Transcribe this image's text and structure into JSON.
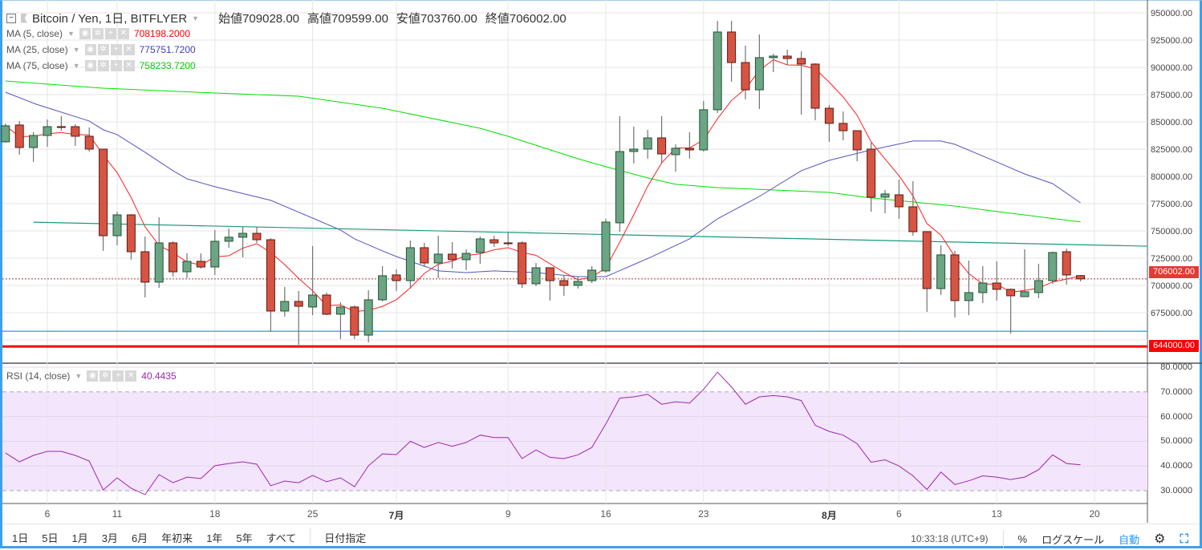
{
  "header": {
    "symbol": "Bitcoin / Yen, 1日, BITFLYER",
    "open_label": "始値",
    "open": "709028.00",
    "high_label": "高値",
    "high": "709599.00",
    "low_label": "安値",
    "low": "703760.00",
    "close_label": "終値",
    "close": "706002.00"
  },
  "indicators": [
    {
      "name": "MA (5, close)",
      "value": "708198.2000",
      "color": "#ff0000"
    },
    {
      "name": "MA (25, close)",
      "value": "775751.7200",
      "color": "#3f3fbf"
    },
    {
      "name": "MA (75, close)",
      "value": "758233.7200",
      "color": "#00e000"
    }
  ],
  "rsi": {
    "name": "RSI (14, close)",
    "value": "40.4435",
    "color": "#9c27b0"
  },
  "price_axis": [
    "950000.00",
    "925000.00",
    "900000.00",
    "875000.00",
    "850000.00",
    "825000.00",
    "800000.00",
    "775000.00",
    "750000.00",
    "725000.00",
    "700000.00",
    "675000.00"
  ],
  "price_badges": {
    "last": "706002.00",
    "level": "644000.00"
  },
  "rsi_axis": [
    "80.0000",
    "70.0000",
    "60.0000",
    "50.0000",
    "40.0000",
    "30.0000"
  ],
  "time_axis": [
    {
      "label": "6",
      "idx": 3
    },
    {
      "label": "11",
      "idx": 8
    },
    {
      "label": "18",
      "idx": 15
    },
    {
      "label": "25",
      "idx": 22
    },
    {
      "label": "7月",
      "idx": 28,
      "bold": true
    },
    {
      "label": "9",
      "idx": 36
    },
    {
      "label": "16",
      "idx": 43
    },
    {
      "label": "23",
      "idx": 50
    },
    {
      "label": "8月",
      "idx": 59,
      "bold": true
    },
    {
      "label": "6",
      "idx": 64
    },
    {
      "label": "13",
      "idx": 71
    },
    {
      "label": "20",
      "idx": 78
    }
  ],
  "colors": {
    "up": "#6ba583",
    "up_border": "#225437",
    "down": "#d75442",
    "down_border": "#5b1a13",
    "wick": "#737375",
    "trend": "#1a9a7a",
    "support": "#2a9bd8",
    "level": "#ff0000",
    "rsi_band": "#f3e5fc"
  },
  "toolbar": {
    "ranges": [
      "1日",
      "5日",
      "1月",
      "3月",
      "6月",
      "年初来",
      "1年",
      "5年",
      "すべて"
    ],
    "date_range": "日付指定",
    "clock": "10:33:18 (UTC+9)",
    "percent": "%",
    "log": "ログスケール",
    "auto": "自動"
  },
  "chart_data": {
    "type": "candlestick",
    "title": "Bitcoin / Yen, 1日, BITFLYER",
    "ylim": [
      640000,
      955000
    ],
    "ohlc": [
      [
        831700,
        848600,
        830900,
        846400
      ],
      [
        847100,
        850800,
        819900,
        826500
      ],
      [
        826500,
        840500,
        813300,
        837500
      ],
      [
        837500,
        852200,
        827200,
        845600
      ],
      [
        845600,
        855200,
        841900,
        845000
      ],
      [
        845600,
        847800,
        828000,
        836800
      ],
      [
        836800,
        844900,
        822800,
        825000
      ],
      [
        825000,
        825000,
        731700,
        745600
      ],
      [
        745600,
        767700,
        736800,
        764700
      ],
      [
        764700,
        765500,
        723600,
        730900
      ],
      [
        730900,
        744900,
        689000,
        703000
      ],
      [
        703000,
        762500,
        697800,
        739000
      ],
      [
        739000,
        740500,
        708100,
        712500
      ],
      [
        712500,
        729400,
        706700,
        722100
      ],
      [
        722100,
        729400,
        715500,
        716900
      ],
      [
        716900,
        750800,
        709600,
        740500
      ],
      [
        740500,
        752200,
        734600,
        744200
      ],
      [
        744200,
        753700,
        725800,
        747800
      ],
      [
        747800,
        753700,
        739000,
        741900
      ],
      [
        741900,
        743400,
        657400,
        676500
      ],
      [
        676500,
        698600,
        671400,
        685300
      ],
      [
        685300,
        694900,
        645600,
        680900
      ],
      [
        680200,
        736100,
        672800,
        691200
      ],
      [
        691200,
        693400,
        672800,
        673600
      ],
      [
        673600,
        684600,
        650800,
        680200
      ],
      [
        680200,
        681700,
        650800,
        654400
      ],
      [
        654400,
        695600,
        647800,
        686800
      ],
      [
        686800,
        717700,
        685300,
        708900
      ],
      [
        709600,
        714700,
        694900,
        704400
      ],
      [
        704400,
        741200,
        697100,
        734600
      ],
      [
        734600,
        739000,
        716900,
        720600
      ],
      [
        720600,
        745600,
        706700,
        728700
      ],
      [
        728700,
        739700,
        715500,
        723600
      ],
      [
        723600,
        733100,
        714000,
        729400
      ],
      [
        730200,
        744900,
        719900,
        742700
      ],
      [
        741900,
        745600,
        735300,
        739000
      ],
      [
        739000,
        749300,
        736100,
        738600
      ],
      [
        739000,
        740500,
        697800,
        701500
      ],
      [
        701500,
        720600,
        699300,
        716200
      ],
      [
        716200,
        716200,
        686100,
        704400
      ],
      [
        704400,
        709600,
        690500,
        700000
      ],
      [
        700000,
        708100,
        697100,
        703700
      ],
      [
        704400,
        717700,
        702200,
        714000
      ],
      [
        713300,
        761100,
        711800,
        758100
      ],
      [
        757400,
        855200,
        749300,
        822800
      ],
      [
        822800,
        845600,
        811800,
        825000
      ],
      [
        825000,
        842700,
        816200,
        835300
      ],
      [
        835300,
        855200,
        812500,
        820600
      ],
      [
        819900,
        829400,
        804400,
        825800
      ],
      [
        825800,
        840500,
        816200,
        824300
      ],
      [
        824300,
        869200,
        822800,
        861100
      ],
      [
        861100,
        942600,
        858100,
        932400
      ],
      [
        932400,
        942600,
        886800,
        904400
      ],
      [
        904400,
        919900,
        870600,
        879400
      ],
      [
        879400,
        930200,
        861800,
        908900
      ],
      [
        908900,
        912500,
        895600,
        910300
      ],
      [
        910300,
        916200,
        902200,
        908100
      ],
      [
        908100,
        914700,
        856700,
        903000
      ],
      [
        903000,
        903700,
        851500,
        862500
      ],
      [
        862500,
        865500,
        831700,
        848600
      ],
      [
        848600,
        859600,
        833100,
        841900
      ],
      [
        841900,
        841900,
        814000,
        824300
      ],
      [
        825000,
        830900,
        767700,
        780900
      ],
      [
        780900,
        787500,
        766200,
        783900
      ],
      [
        783100,
        797100,
        761100,
        772100
      ],
      [
        772100,
        795600,
        745600,
        749300
      ],
      [
        749300,
        749300,
        675800,
        697100
      ],
      [
        697100,
        736800,
        691200,
        728000
      ],
      [
        728000,
        731700,
        670600,
        686100
      ],
      [
        686100,
        722800,
        672800,
        693400
      ],
      [
        693400,
        717700,
        683800,
        702200
      ],
      [
        702200,
        722100,
        686100,
        696400
      ],
      [
        696400,
        697100,
        655900,
        690500
      ],
      [
        689700,
        733100,
        689700,
        694200
      ],
      [
        693400,
        719900,
        688300,
        704400
      ],
      [
        704400,
        730900,
        701500,
        730200
      ],
      [
        730900,
        733900,
        700800,
        709600
      ],
      [
        709028,
        709599,
        703760,
        706002
      ]
    ],
    "ma25": [
      [
        0,
        877200
      ],
      [
        2.2,
        866200
      ],
      [
        6,
        850800
      ],
      [
        7,
        842700
      ],
      [
        8,
        838300
      ],
      [
        10,
        822100
      ],
      [
        12,
        805200
      ],
      [
        13,
        797800
      ],
      [
        15,
        790500
      ],
      [
        19,
        778000
      ],
      [
        22,
        761800
      ],
      [
        24,
        750800
      ],
      [
        25,
        742700
      ],
      [
        27,
        731700
      ],
      [
        28,
        726500
      ],
      [
        31,
        713300
      ],
      [
        33,
        711800
      ],
      [
        35,
        713300
      ],
      [
        38,
        711800
      ],
      [
        41,
        708100
      ],
      [
        43,
        708100
      ],
      [
        45,
        719100
      ],
      [
        46.2,
        725800
      ],
      [
        49,
        742700
      ],
      [
        51,
        761100
      ],
      [
        54,
        781600
      ],
      [
        57,
        805200
      ],
      [
        59,
        814700
      ],
      [
        62,
        824300
      ],
      [
        65,
        832400
      ],
      [
        67,
        832400
      ],
      [
        68,
        829400
      ],
      [
        71,
        813300
      ],
      [
        73,
        802200
      ],
      [
        75,
        793400
      ],
      [
        77,
        775752
      ]
    ],
    "ma75": [
      [
        0,
        887500
      ],
      [
        7,
        880900
      ],
      [
        15,
        876500
      ],
      [
        21,
        873500
      ],
      [
        25,
        866200
      ],
      [
        27,
        862500
      ],
      [
        34,
        844100
      ],
      [
        36,
        836800
      ],
      [
        41,
        816200
      ],
      [
        43,
        808900
      ],
      [
        46,
        798600
      ],
      [
        48,
        792700
      ],
      [
        51,
        789700
      ],
      [
        59,
        785300
      ],
      [
        62,
        780200
      ],
      [
        68,
        772800
      ],
      [
        72,
        766200
      ],
      [
        77,
        758233
      ]
    ],
    "trendline": [
      [
        2,
        758000
      ],
      [
        81.8,
        736000
      ]
    ],
    "support_level": 658000,
    "horizontal_level": 644000,
    "last_price": 706002,
    "rsi_values": [
      45.3,
      41.7,
      44.3,
      45.9,
      45.9,
      44.3,
      42.0,
      30.3,
      35.2,
      31.0,
      28.4,
      36.5,
      33.2,
      35.5,
      34.9,
      40.1,
      41.0,
      41.7,
      40.7,
      32.0,
      33.9,
      33.2,
      36.2,
      33.6,
      35.2,
      31.6,
      40.1,
      44.9,
      44.6,
      50,
      47.5,
      49.5,
      48,
      49.5,
      52.5,
      51.5,
      51.5,
      43,
      46.5,
      43.5,
      43,
      44.5,
      47.5,
      57,
      67.5,
      68,
      69,
      65,
      66,
      65.5,
      71,
      78,
      72,
      65,
      68,
      68.5,
      68,
      66.5,
      56.5,
      54,
      52.5,
      49,
      41.5,
      42.5,
      40,
      36,
      30.5,
      37.5,
      32.5,
      34,
      36,
      35.5,
      34.5,
      35.5,
      38.5,
      44.5,
      41,
      40.44
    ],
    "rsi_ylim": [
      25,
      82
    ],
    "rsi_bands": [
      30,
      70
    ]
  }
}
